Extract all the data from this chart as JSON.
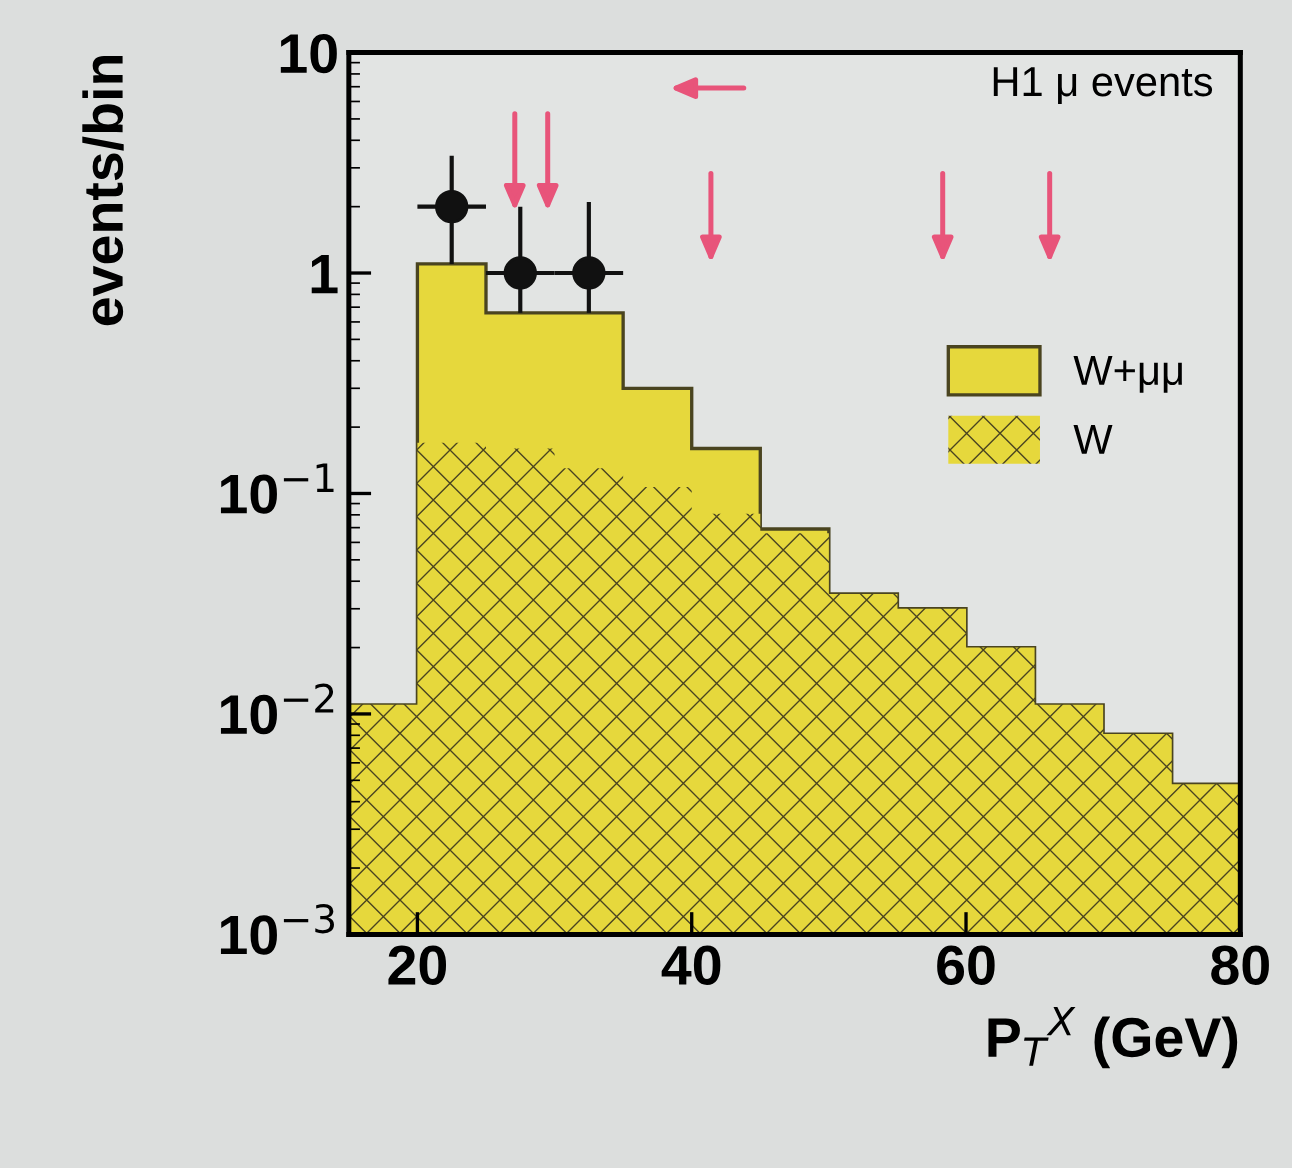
{
  "chart_data": {
    "type": "histogram",
    "xlabel": "P$_{T}$$^{X}$ (GeV)",
    "ylabel": "events/bin",
    "log": "y",
    "xlim": [
      15,
      80
    ],
    "xticks": [
      20,
      40,
      60,
      80
    ],
    "ylim": [
      0.001,
      10
    ],
    "yticks": [
      {
        "value": 0.001,
        "label": "10$^{−3}$"
      },
      {
        "value": 0.01,
        "label": "10$^{−2}$"
      },
      {
        "value": 0.1,
        "label": "10$^{−1}$"
      },
      {
        "value": 1,
        "label": "1"
      },
      {
        "value": 10,
        "label": "10"
      }
    ],
    "bins": [
      15,
      20,
      25,
      30,
      35,
      40,
      45,
      50,
      55,
      60,
      65,
      70,
      75,
      80
    ],
    "legend": "right",
    "grid": false,
    "annotations": [
      "H1 μ events"
    ],
    "series": [
      {
        "name": "W+μμ",
        "color": "#e6d83c",
        "values": [
          0.011,
          1.1,
          0.66,
          0.66,
          0.3,
          0.16,
          0.069,
          0.035,
          0.03,
          0.02,
          0.011,
          0.0081,
          0.0048
        ]
      },
      {
        "name": "W",
        "color": "#e6d83c",
        "values": [
          0.011,
          0.17,
          0.16,
          0.13,
          0.107,
          0.081,
          0.066,
          0.035,
          0.03,
          0.02,
          0.011,
          0.0081,
          0.0048
        ]
      },
      {
        "type": "scatter",
        "color": "#111111",
        "marker": "circle",
        "x": [
          22.5,
          27.5,
          32.5
        ],
        "values": [
          2,
          1,
          1
        ],
        "errors": [
          [
            1.1,
            3.4
          ],
          [
            0.66,
            2
          ],
          [
            0.66,
            2.1
          ]
        ],
        "xerrors": [
          2.5,
          2.5,
          2.5
        ]
      }
    ]
  }
}
